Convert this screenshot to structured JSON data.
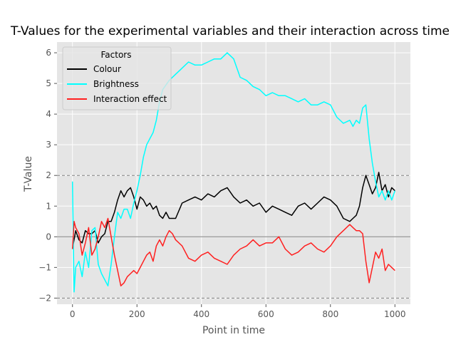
{
  "chart_data": {
    "type": "line",
    "title": "T-Values for the experimental variables and their interaction across time",
    "xlabel": "Point in time",
    "ylabel": "T-Value",
    "xlim": [
      -48,
      1048
    ],
    "ylim": [
      -2.2,
      6.35
    ],
    "xticks": [
      0,
      200,
      400,
      600,
      800,
      1000
    ],
    "yticks": [
      -2,
      -1,
      0,
      1,
      2,
      3,
      4,
      5,
      6
    ],
    "grid": true,
    "background": "#e5e5e5",
    "legend": {
      "title": "Factors",
      "placement": "top-left"
    },
    "reference_lines": [
      {
        "y": 2,
        "style": "dashed",
        "color": "#808080"
      },
      {
        "y": 0,
        "style": "solid",
        "color": "#808080"
      },
      {
        "y": -2,
        "style": "dashed",
        "color": "#808080"
      }
    ],
    "series": [
      {
        "name": "Colour",
        "color": "#000000",
        "x": [
          0,
          10,
          20,
          30,
          40,
          50,
          60,
          70,
          80,
          90,
          100,
          110,
          120,
          130,
          140,
          150,
          160,
          170,
          180,
          190,
          200,
          210,
          220,
          230,
          240,
          250,
          260,
          270,
          280,
          290,
          300,
          320,
          340,
          360,
          380,
          400,
          420,
          440,
          460,
          480,
          500,
          520,
          540,
          560,
          580,
          600,
          620,
          640,
          660,
          680,
          700,
          720,
          740,
          760,
          780,
          800,
          820,
          840,
          860,
          870,
          880,
          890,
          900,
          910,
          920,
          930,
          940,
          950,
          960,
          970,
          980,
          990,
          1000
        ],
        "values": [
          -0.4,
          0.2,
          -0.1,
          -0.2,
          0.2,
          0.1,
          0.1,
          0.2,
          -0.2,
          0.0,
          0.1,
          0.5,
          0.5,
          0.8,
          1.2,
          1.5,
          1.3,
          1.5,
          1.6,
          1.3,
          0.9,
          1.3,
          1.2,
          1.0,
          1.1,
          0.9,
          1.0,
          0.7,
          0.6,
          0.8,
          0.6,
          0.6,
          1.1,
          1.2,
          1.3,
          1.2,
          1.4,
          1.3,
          1.5,
          1.6,
          1.3,
          1.1,
          1.2,
          1.0,
          1.1,
          0.8,
          1.0,
          0.9,
          0.8,
          0.7,
          1.0,
          1.1,
          0.9,
          1.1,
          1.3,
          1.2,
          1.0,
          0.6,
          0.5,
          0.6,
          0.7,
          1.0,
          1.6,
          2.0,
          1.7,
          1.4,
          1.6,
          2.1,
          1.5,
          1.7,
          1.3,
          1.6,
          1.5
        ]
      },
      {
        "name": "Brightness",
        "color": "#00ffff",
        "x": [
          0,
          5,
          10,
          20,
          30,
          40,
          50,
          60,
          70,
          80,
          90,
          100,
          110,
          120,
          130,
          140,
          150,
          160,
          170,
          180,
          190,
          200,
          210,
          220,
          230,
          240,
          250,
          260,
          270,
          280,
          300,
          320,
          340,
          360,
          380,
          400,
          420,
          440,
          460,
          480,
          500,
          510,
          520,
          540,
          560,
          580,
          600,
          620,
          640,
          660,
          680,
          700,
          720,
          740,
          760,
          780,
          800,
          820,
          840,
          860,
          870,
          880,
          890,
          900,
          910,
          920,
          930,
          940,
          950,
          960,
          970,
          980,
          990,
          1000
        ],
        "values": [
          1.8,
          -1.8,
          -1.0,
          -0.8,
          -1.3,
          -0.5,
          -1.0,
          0.2,
          0.3,
          -0.9,
          -1.2,
          -1.4,
          -1.6,
          -0.9,
          0.0,
          0.8,
          0.6,
          0.9,
          0.9,
          0.6,
          1.1,
          1.5,
          2.0,
          2.6,
          3.0,
          3.2,
          3.4,
          3.8,
          4.4,
          4.8,
          5.1,
          5.3,
          5.5,
          5.7,
          5.6,
          5.6,
          5.7,
          5.8,
          5.8,
          6.0,
          5.8,
          5.5,
          5.2,
          5.1,
          4.9,
          4.8,
          4.6,
          4.7,
          4.6,
          4.6,
          4.5,
          4.4,
          4.5,
          4.3,
          4.3,
          4.4,
          4.3,
          3.9,
          3.7,
          3.8,
          3.6,
          3.8,
          3.7,
          4.2,
          4.3,
          3.2,
          2.4,
          1.8,
          1.3,
          1.5,
          1.2,
          1.5,
          1.2,
          1.5
        ]
      },
      {
        "name": "Interaction effect",
        "color": "#ff2020",
        "x": [
          0,
          5,
          10,
          20,
          30,
          40,
          50,
          60,
          70,
          80,
          90,
          100,
          110,
          120,
          130,
          140,
          150,
          160,
          170,
          180,
          190,
          200,
          210,
          220,
          230,
          240,
          250,
          260,
          270,
          280,
          290,
          300,
          310,
          320,
          340,
          360,
          380,
          400,
          420,
          440,
          460,
          480,
          500,
          520,
          540,
          560,
          580,
          600,
          620,
          640,
          660,
          680,
          700,
          720,
          740,
          760,
          780,
          800,
          820,
          840,
          860,
          870,
          880,
          890,
          900,
          910,
          920,
          930,
          940,
          950,
          960,
          970,
          980,
          990,
          1000
        ],
        "values": [
          -0.4,
          0.5,
          0.3,
          0.1,
          -0.6,
          -0.2,
          0.3,
          -0.6,
          -0.4,
          0.0,
          0.5,
          0.3,
          0.6,
          0.0,
          -0.6,
          -1.1,
          -1.6,
          -1.5,
          -1.3,
          -1.2,
          -1.1,
          -1.2,
          -1.0,
          -0.8,
          -0.6,
          -0.5,
          -0.8,
          -0.3,
          -0.1,
          -0.3,
          0.0,
          0.2,
          0.1,
          -0.1,
          -0.3,
          -0.7,
          -0.8,
          -0.6,
          -0.5,
          -0.7,
          -0.8,
          -0.9,
          -0.6,
          -0.4,
          -0.3,
          -0.1,
          -0.3,
          -0.2,
          -0.2,
          0.0,
          -0.4,
          -0.6,
          -0.5,
          -0.3,
          -0.2,
          -0.4,
          -0.5,
          -0.3,
          0.0,
          0.2,
          0.4,
          0.3,
          0.2,
          0.2,
          0.1,
          -0.8,
          -1.5,
          -1.0,
          -0.5,
          -0.7,
          -0.4,
          -1.1,
          -0.9,
          -1.0,
          -1.1
        ]
      }
    ]
  }
}
